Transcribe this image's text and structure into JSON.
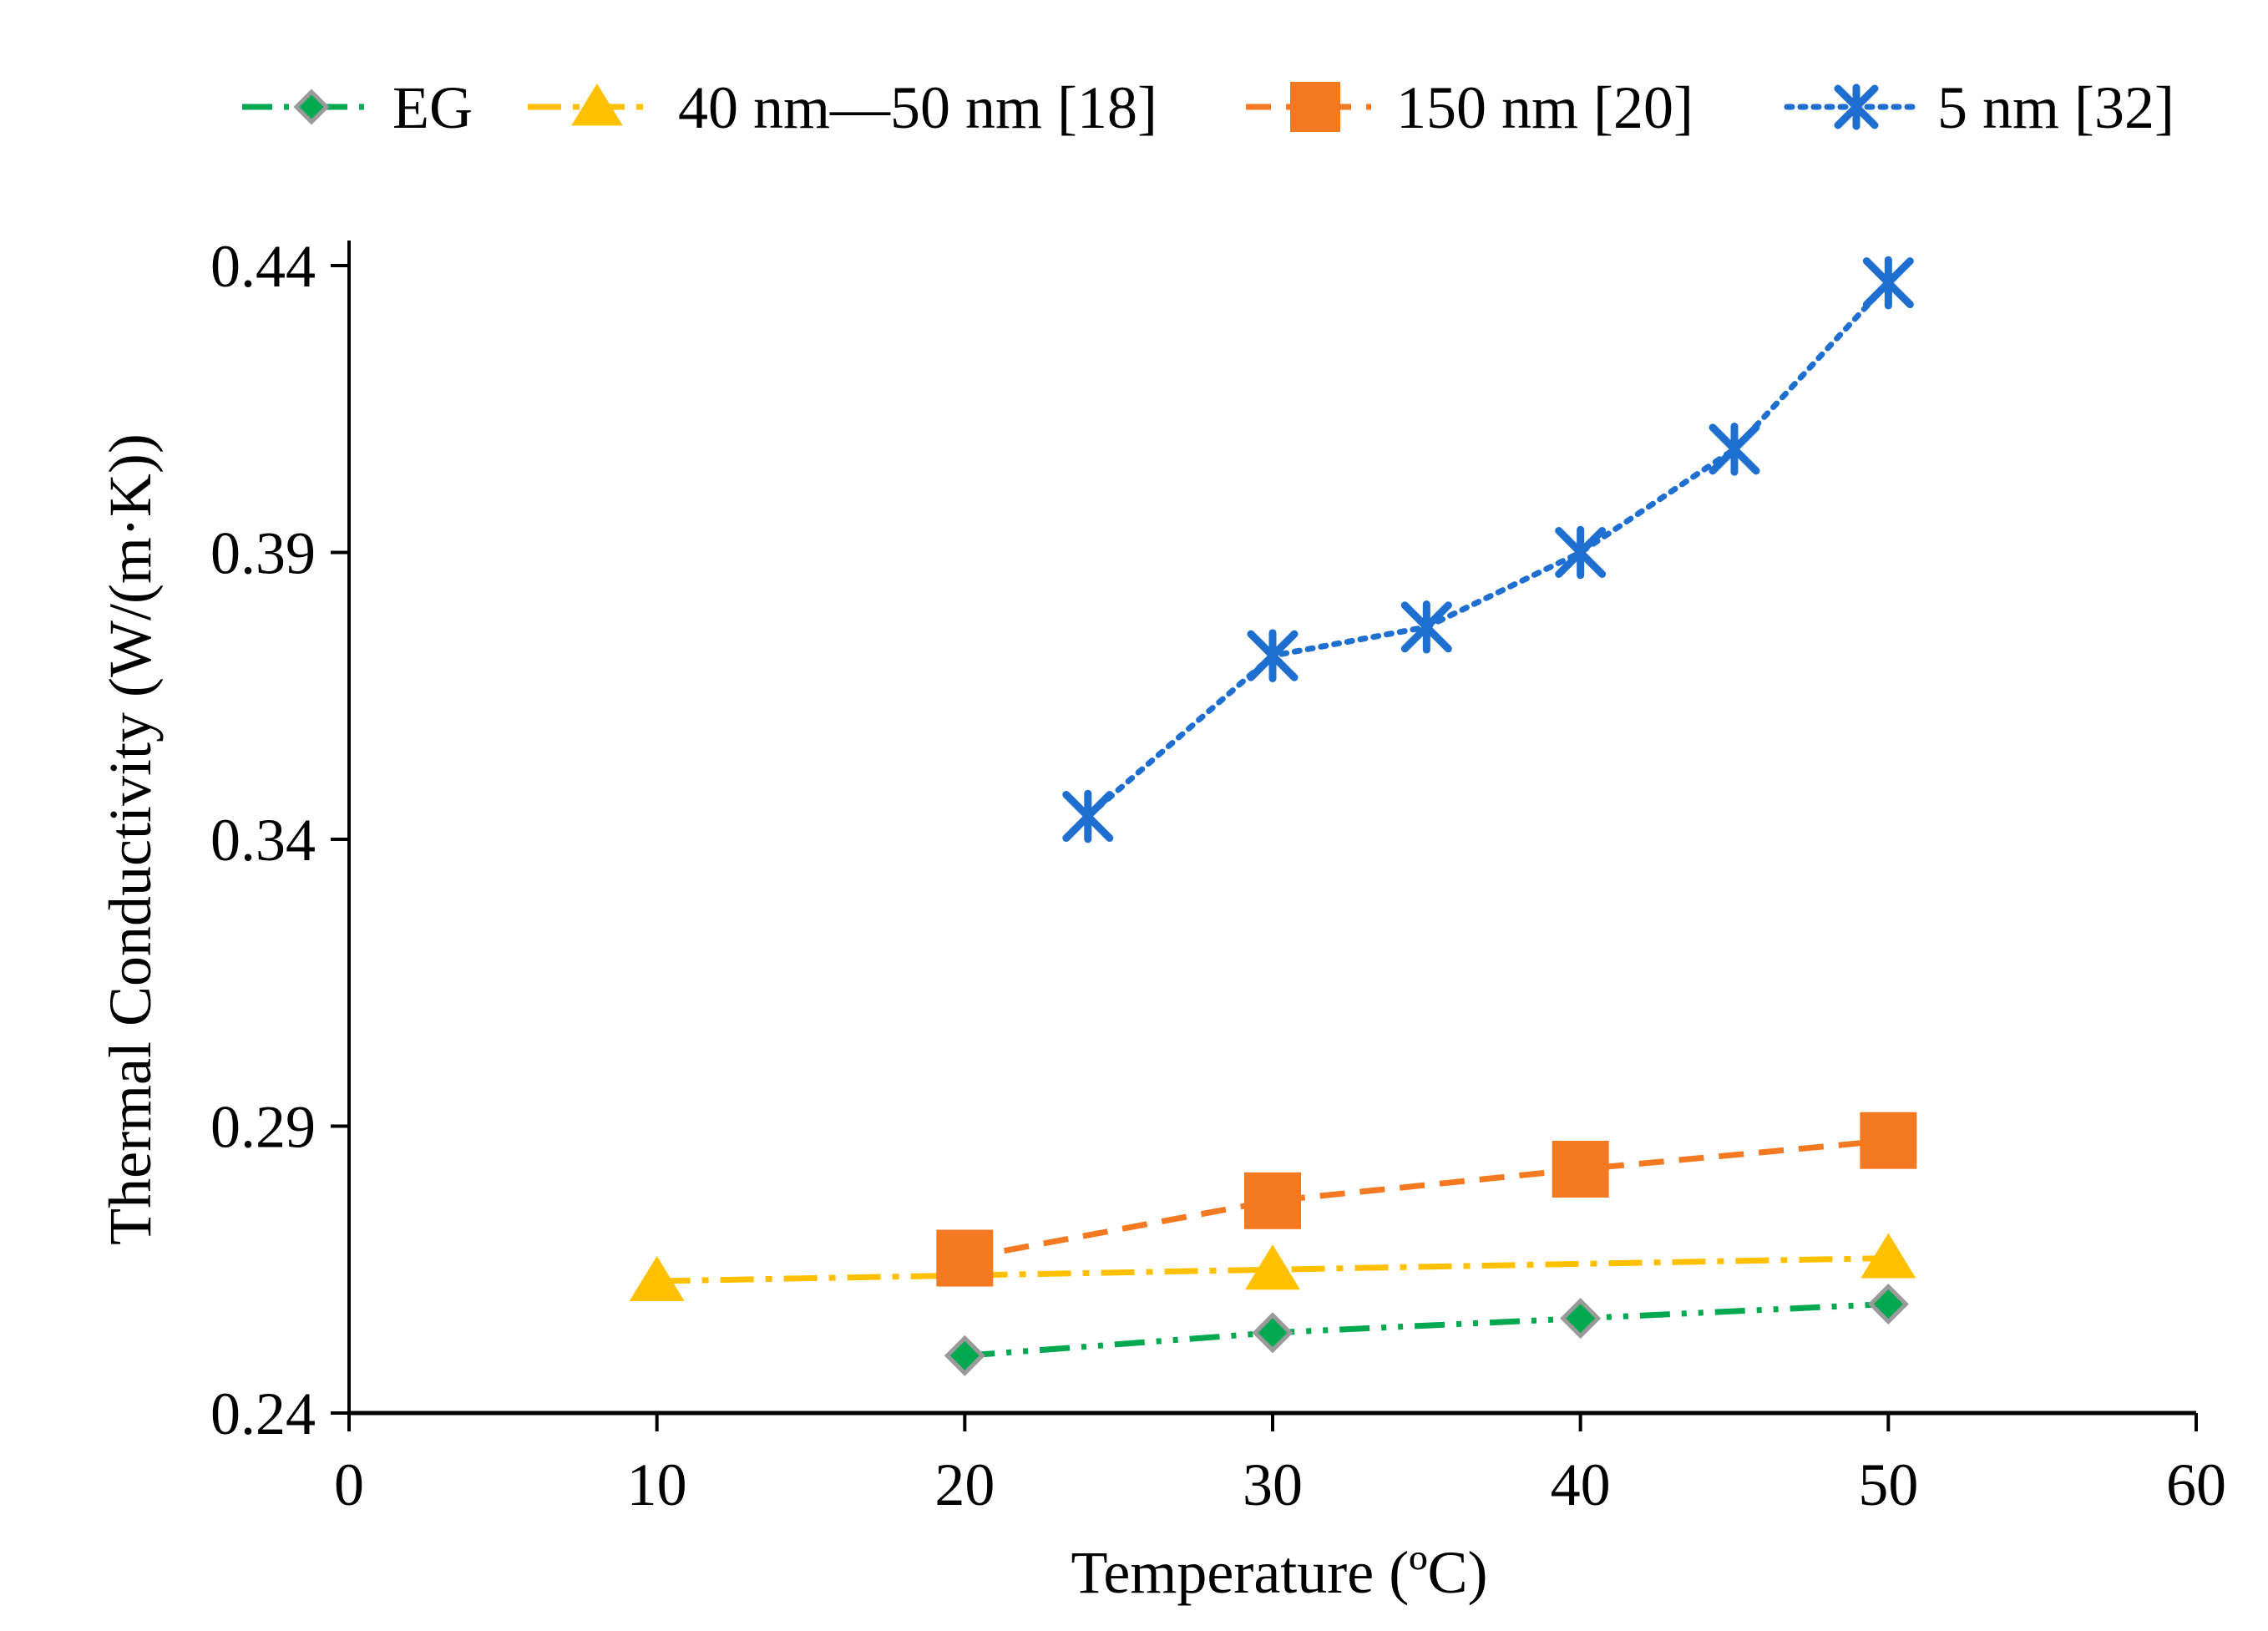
{
  "chart_data": {
    "type": "line",
    "title": "",
    "xlabel": "Temperature (ºC)",
    "ylabel": "Thermal Conductivity (W/(m·K))",
    "xlim": [
      0,
      60
    ],
    "ylim": [
      0.24,
      0.44
    ],
    "xticks": [
      0,
      10,
      20,
      30,
      40,
      50,
      60
    ],
    "yticks": [
      0.24,
      0.29,
      0.34,
      0.39,
      0.44
    ],
    "xtick_labels": [
      "0",
      "10",
      "20",
      "30",
      "40",
      "50",
      "60"
    ],
    "ytick_labels": [
      "0.24",
      "0.29",
      "0.34",
      "0.39",
      "0.44"
    ],
    "grid": false,
    "legend_position": "top",
    "series": [
      {
        "name": "EG",
        "color": "#00a84f",
        "marker": "diamond",
        "line_style": "dash-dot-dot",
        "x": [
          20,
          30,
          40,
          50
        ],
        "y": [
          0.25,
          0.254,
          0.2565,
          0.259
        ]
      },
      {
        "name": "40 nm—50 nm [18]",
        "color": "#ffc000",
        "marker": "triangle",
        "line_style": "dash-dot",
        "x": [
          10,
          30,
          50
        ],
        "y": [
          0.263,
          0.265,
          0.267
        ]
      },
      {
        "name": "150 nm [20]",
        "color": "#f47920",
        "marker": "square",
        "line_style": "dashed",
        "x": [
          20,
          30,
          40,
          50
        ],
        "y": [
          0.267,
          0.277,
          0.2825,
          0.2875
        ]
      },
      {
        "name": "5 nm [32]",
        "color": "#1f6fd0",
        "marker": "asterisk",
        "line_style": "dotted",
        "x": [
          24,
          30,
          35,
          40,
          45,
          50
        ],
        "y": [
          0.344,
          0.372,
          0.377,
          0.39,
          0.408,
          0.437
        ]
      }
    ]
  }
}
